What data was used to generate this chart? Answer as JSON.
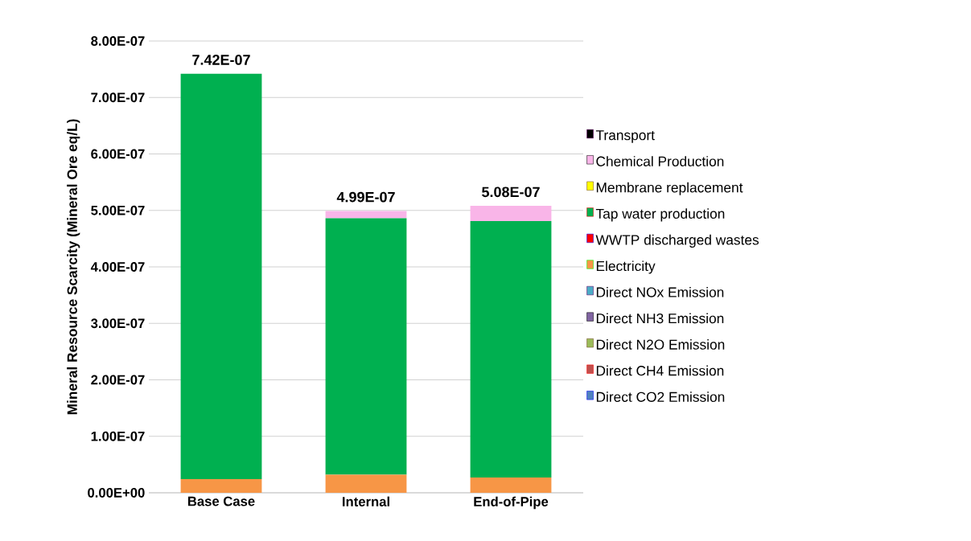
{
  "chart_data": {
    "type": "bar",
    "stacked": true,
    "ylabel": "Mineral Resource Scarcity (Mineral Ore eq/L)",
    "categories": [
      "Base Case",
      "Internal",
      "End-of-Pipe"
    ],
    "series": [
      {
        "name": "Direct CO2 Emission",
        "color": "#4f81bd",
        "values": [
          0,
          0,
          0
        ]
      },
      {
        "name": "Direct CH4 Emission",
        "color": "#c0504d",
        "values": [
          0,
          0,
          0
        ]
      },
      {
        "name": "Direct N2O Emission",
        "color": "#9bbb59",
        "values": [
          0,
          0,
          0
        ]
      },
      {
        "name": "Direct NH3 Emission",
        "color": "#8064a2",
        "values": [
          0,
          0,
          0
        ]
      },
      {
        "name": "Direct NOx Emission",
        "color": "#4bacc6",
        "values": [
          0,
          0,
          0
        ]
      },
      {
        "name": "Electricity",
        "color": "#f79646",
        "values": [
          2.4e-08,
          3.2e-08,
          2.7e-08
        ]
      },
      {
        "name": "WWTP discharged wastes",
        "color": "#ff0000",
        "values": [
          0,
          0,
          0
        ]
      },
      {
        "name": "Tap water production",
        "color": "#00b050",
        "values": [
          7.18e-07,
          4.54e-07,
          4.54e-07
        ]
      },
      {
        "name": "Membrane replacement",
        "color": "#ffff00",
        "values": [
          0,
          0,
          0
        ]
      },
      {
        "name": "Chemical Production",
        "color": "#f9b5e8",
        "values": [
          0,
          1.3e-08,
          2.7e-08
        ]
      },
      {
        "name": "Transport",
        "color": "#000000",
        "values": [
          0,
          0,
          0
        ]
      }
    ],
    "totals": [
      "7.42E-07",
      "4.99E-07",
      "5.08E-07"
    ],
    "ylim": [
      0,
      8e-07
    ],
    "yticks": [
      {
        "value": 0,
        "label": "0.00E+00"
      },
      {
        "value": 1e-07,
        "label": "1.00E-07"
      },
      {
        "value": 2e-07,
        "label": "2.00E-07"
      },
      {
        "value": 3e-07,
        "label": "3.00E-07"
      },
      {
        "value": 4e-07,
        "label": "4.00E-07"
      },
      {
        "value": 5e-07,
        "label": "5.00E-07"
      },
      {
        "value": 6e-07,
        "label": "6.00E-07"
      },
      {
        "value": 7e-07,
        "label": "7.00E-07"
      },
      {
        "value": 8e-07,
        "label": "8.00E-07"
      }
    ],
    "grid": "y",
    "legend": "right"
  }
}
